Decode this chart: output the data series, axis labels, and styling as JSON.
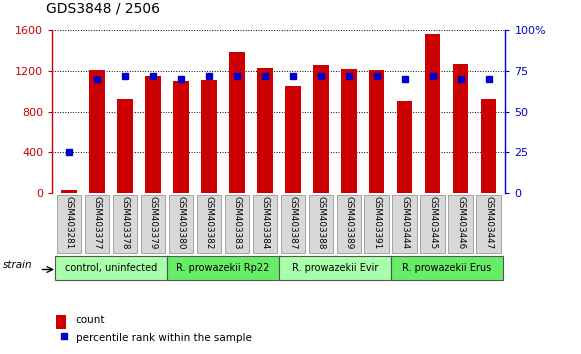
{
  "title": "GDS3848 / 2506",
  "samples": [
    "GSM403281",
    "GSM403377",
    "GSM403378",
    "GSM403379",
    "GSM403380",
    "GSM403382",
    "GSM403383",
    "GSM403384",
    "GSM403387",
    "GSM403388",
    "GSM403389",
    "GSM403391",
    "GSM403444",
    "GSM403445",
    "GSM403446",
    "GSM403447"
  ],
  "counts": [
    30,
    1210,
    920,
    1150,
    1100,
    1105,
    1380,
    1225,
    1050,
    1260,
    1220,
    1210,
    900,
    1560,
    1270,
    920
  ],
  "percentiles": [
    25,
    70,
    72,
    72,
    70,
    72,
    72,
    72,
    72,
    72,
    72,
    72,
    70,
    72,
    70,
    70
  ],
  "bar_color": "#CC0000",
  "dot_color": "#0000CC",
  "left_axis_color": "#CC0000",
  "right_axis_color": "#0000CC",
  "ylim_left": [
    0,
    1600
  ],
  "ylim_right": [
    0,
    100
  ],
  "left_yticks": [
    0,
    400,
    800,
    1200,
    1600
  ],
  "right_yticks": [
    0,
    25,
    50,
    75,
    100
  ],
  "right_yticklabels": [
    "0",
    "25",
    "50",
    "75",
    "100%"
  ],
  "groups": [
    {
      "label": "control, uninfected",
      "start": 0,
      "end": 4,
      "color": "#AAFFAA"
    },
    {
      "label": "R. prowazekii Rp22",
      "start": 4,
      "end": 8,
      "color": "#66EE66"
    },
    {
      "label": "R. prowazekii Evir",
      "start": 8,
      "end": 12,
      "color": "#AAFFAA"
    },
    {
      "label": "R. prowazekii Erus",
      "start": 12,
      "end": 16,
      "color": "#66EE66"
    }
  ],
  "bar_width": 0.55,
  "grid_color": "#000000",
  "bg_color": "#FFFFFF",
  "tick_bg_color": "#D8D8D8"
}
